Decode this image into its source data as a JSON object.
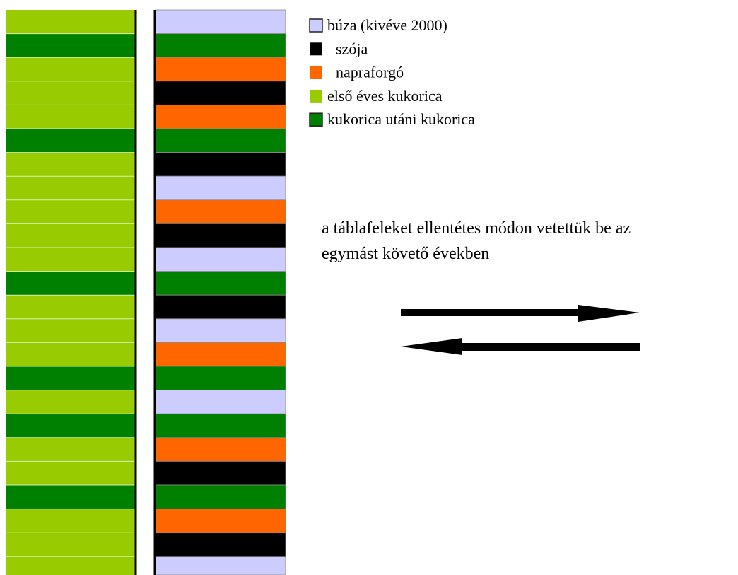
{
  "legend": [
    {
      "label": "búza (kivéve 2000)",
      "color": "#ccccff"
    },
    {
      "label": "szója",
      "color": "#000000"
    },
    {
      "label": "napraforgó",
      "color": "#ff6600"
    },
    {
      "label": "első éves kukorica",
      "color": "#99cc00"
    },
    {
      "label": "kukorica utáni kukorica",
      "color": "#008000"
    }
  ],
  "note": [
    "a táblafeleket ellentétes módon vetettük be az",
    "egymást követő években"
  ]
}
